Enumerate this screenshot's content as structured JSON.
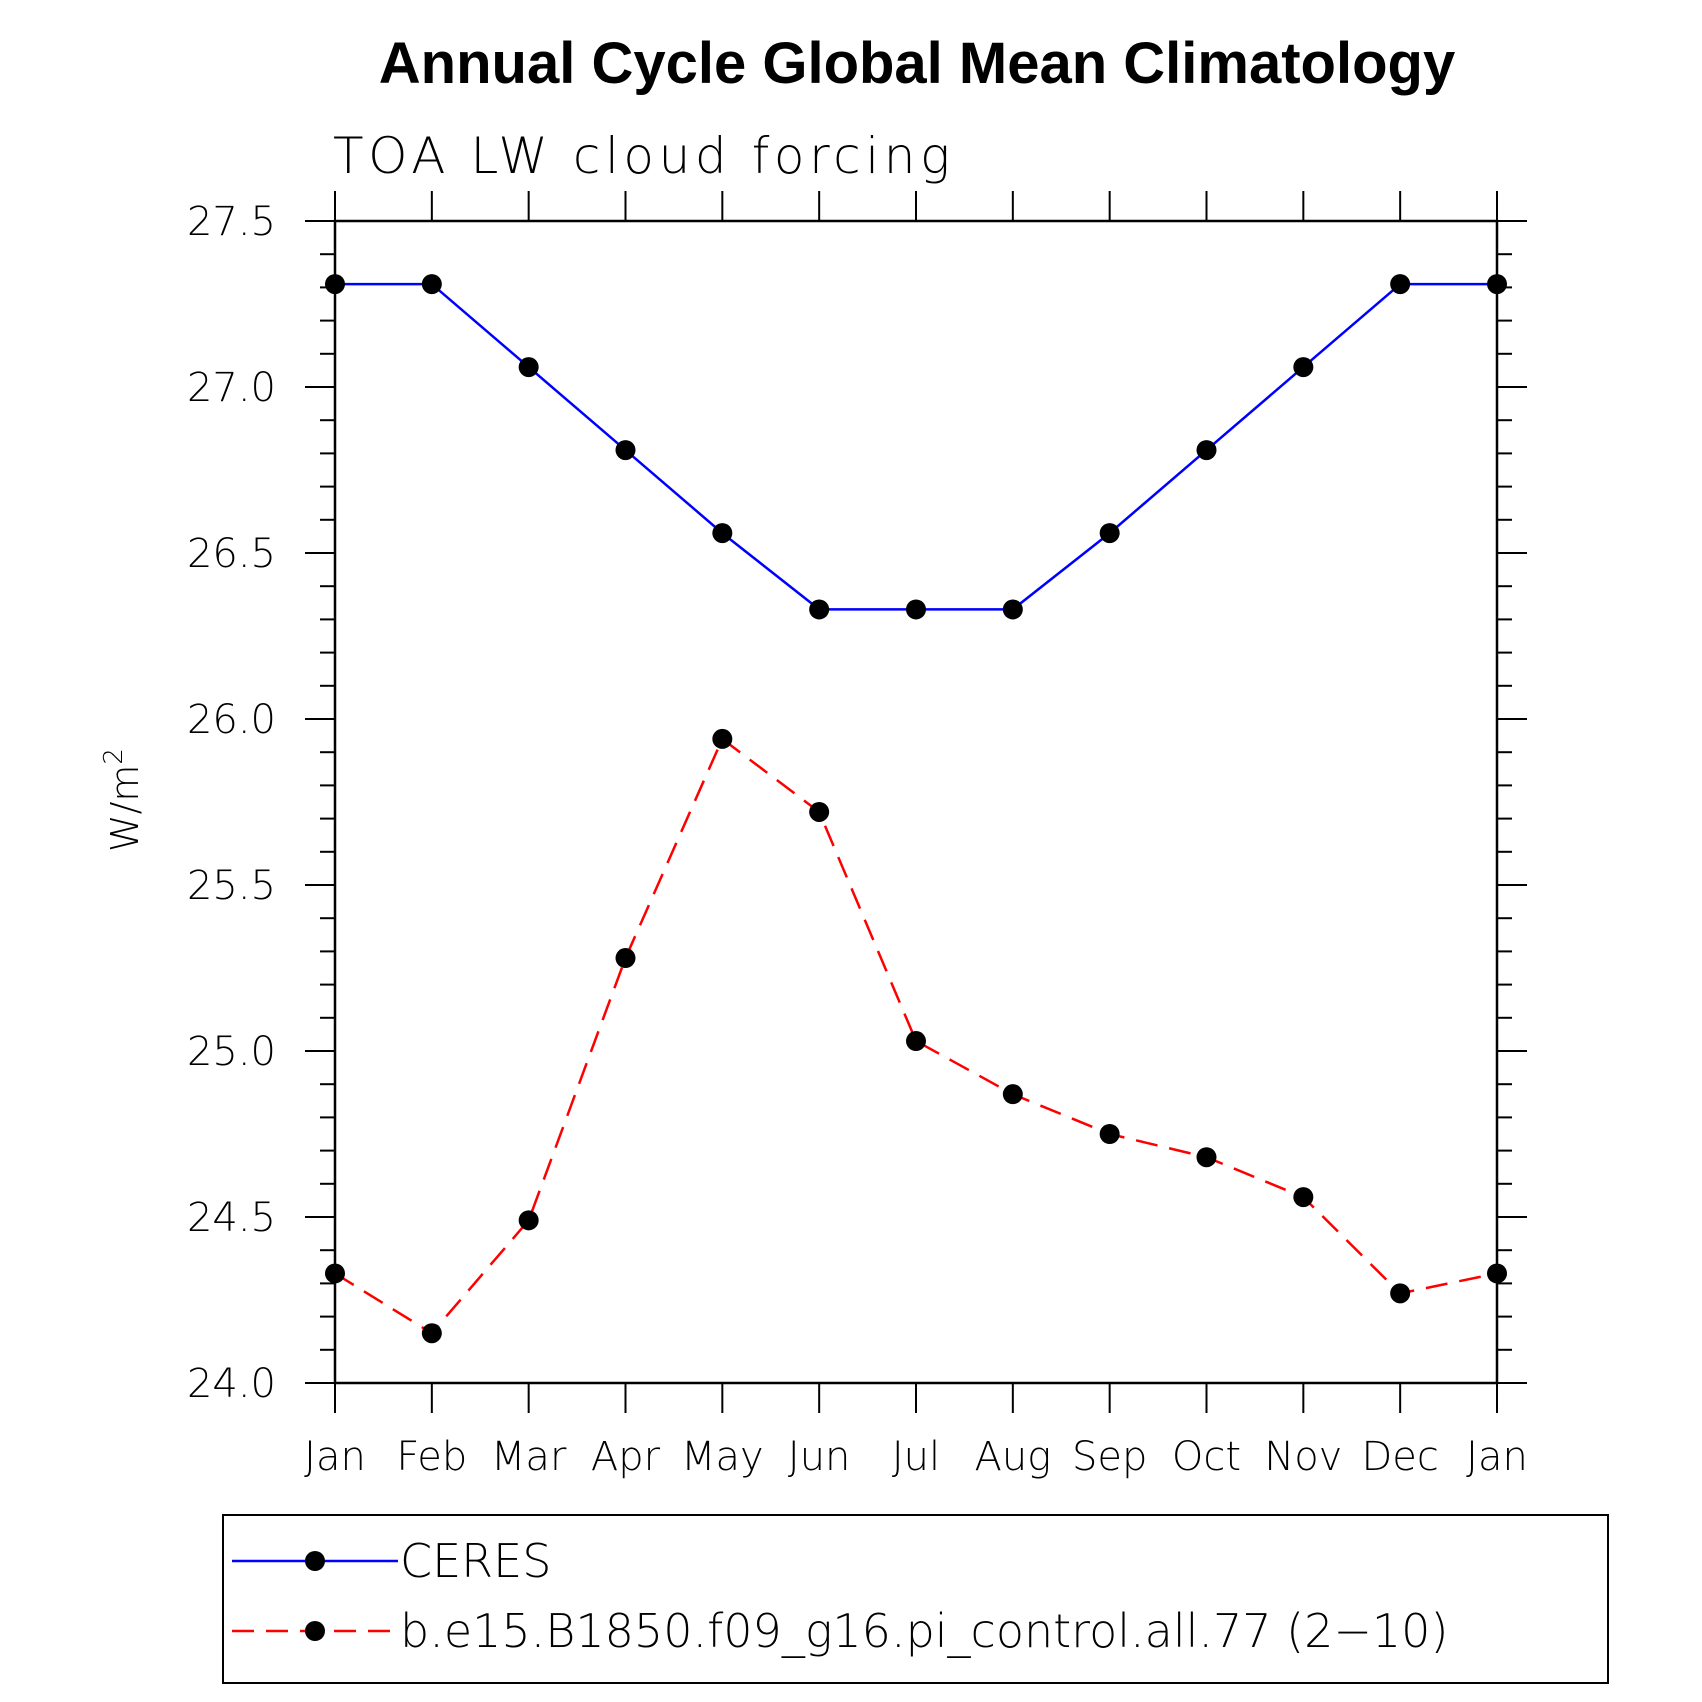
{
  "chart_data": {
    "type": "line",
    "title": "Annual Cycle Global Mean Climatology",
    "subtitle": "TOA LW cloud forcing",
    "ylabel_base": "W/m",
    "ylabel_sup": "2",
    "xlabel": "",
    "categories": [
      "Jan",
      "Feb",
      "Mar",
      "Apr",
      "May",
      "Jun",
      "Jul",
      "Aug",
      "Sep",
      "Oct",
      "Nov",
      "Dec",
      "Jan"
    ],
    "ylim": [
      24.0,
      27.5
    ],
    "yticks": [
      24.0,
      24.5,
      25.0,
      25.5,
      26.0,
      26.5,
      27.0,
      27.5
    ],
    "ytick_labels": [
      "24.0",
      "24.5",
      "25.0",
      "25.5",
      "26.0",
      "26.5",
      "27.0",
      "27.5"
    ],
    "grid": false,
    "legend_position": "bottom",
    "series": [
      {
        "name": "CERES",
        "color": "#0000ff",
        "line_style": "solid",
        "marker": "filled-circle",
        "values": [
          27.31,
          27.31,
          27.06,
          26.81,
          26.56,
          26.33,
          26.33,
          26.33,
          26.56,
          26.81,
          27.06,
          27.31,
          27.31
        ]
      },
      {
        "name": "b.e15.B1850.f09_g16.pi_control.all.77 (2−10)",
        "color": "#ff0000",
        "line_style": "dashed",
        "marker": "filled-circle",
        "values": [
          24.33,
          24.15,
          24.49,
          25.28,
          25.94,
          25.72,
          25.03,
          24.87,
          24.75,
          24.68,
          24.56,
          24.27,
          24.33
        ]
      }
    ]
  }
}
